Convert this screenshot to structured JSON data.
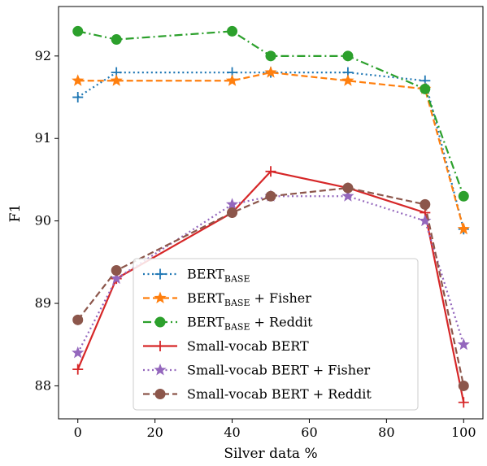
{
  "chart_data": {
    "type": "line",
    "xlabel": "Silver data %",
    "ylabel": "F1",
    "xlim": [
      -5,
      105
    ],
    "ylim": [
      87.6,
      92.6
    ],
    "x_ticks": [
      0,
      20,
      40,
      60,
      80,
      100
    ],
    "y_ticks": [
      88,
      89,
      90,
      91,
      92
    ],
    "legend_position": "lower-center",
    "grid": false,
    "series": [
      {
        "name": "BERT",
        "name_sub": "BASE",
        "name_suffix": "",
        "color": "#1f77b4",
        "linestyle": "dotted",
        "marker": "plus",
        "x": [
          0,
          10,
          40,
          50,
          70,
          90,
          100
        ],
        "y": [
          91.5,
          91.8,
          91.8,
          91.8,
          91.8,
          91.7,
          89.9
        ]
      },
      {
        "name": "BERT",
        "name_sub": "BASE",
        "name_suffix": " + Fisher",
        "color": "#ff7f0e",
        "linestyle": "dashed",
        "marker": "star",
        "x": [
          0,
          10,
          40,
          50,
          70,
          90,
          100
        ],
        "y": [
          91.7,
          91.7,
          91.7,
          91.8,
          91.7,
          91.6,
          89.9
        ]
      },
      {
        "name": "BERT",
        "name_sub": "BASE",
        "name_suffix": " + Reddit",
        "color": "#2ca02c",
        "linestyle": "dashdot",
        "marker": "circle",
        "x": [
          0,
          10,
          40,
          50,
          70,
          90,
          100
        ],
        "y": [
          92.3,
          92.2,
          92.3,
          92.0,
          92.0,
          91.6,
          90.3
        ]
      },
      {
        "name": "Small-vocab BERT",
        "name_sub": "",
        "name_suffix": "",
        "color": "#d62728",
        "linestyle": "solid",
        "marker": "plus",
        "x": [
          0,
          10,
          40,
          50,
          70,
          90,
          100
        ],
        "y": [
          88.2,
          89.3,
          90.1,
          90.6,
          90.4,
          90.1,
          87.8
        ]
      },
      {
        "name": "Small-vocab BERT + Fisher",
        "name_sub": "",
        "name_suffix": "",
        "color": "#9467bd",
        "linestyle": "dotted",
        "marker": "star",
        "x": [
          0,
          10,
          40,
          50,
          70,
          90,
          100
        ],
        "y": [
          88.4,
          89.3,
          90.2,
          90.3,
          90.3,
          90.0,
          88.5
        ]
      },
      {
        "name": "Small-vocab BERT + Reddit",
        "name_sub": "",
        "name_suffix": "",
        "color": "#8c564b",
        "linestyle": "dashed",
        "marker": "circle",
        "x": [
          0,
          10,
          40,
          50,
          70,
          90,
          100
        ],
        "y": [
          88.8,
          89.4,
          90.1,
          90.3,
          90.4,
          90.2,
          88.0
        ]
      }
    ]
  }
}
